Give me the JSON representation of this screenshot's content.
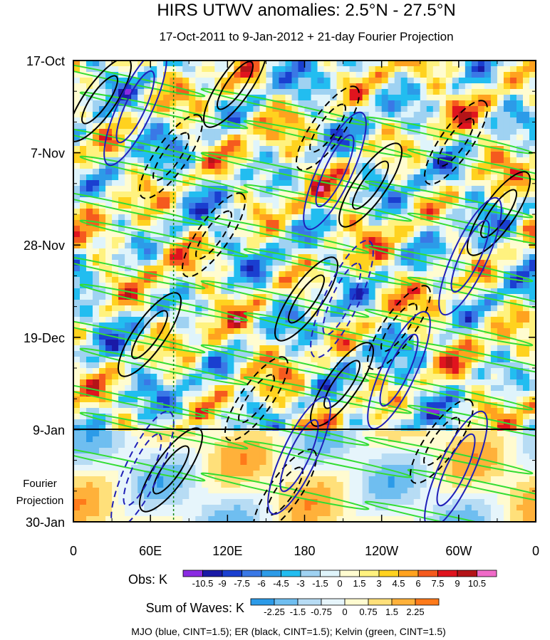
{
  "chart_data": {
    "type": "heatmap",
    "title": "HIRS UTWV anomalies: 2.5°N - 27.5°N",
    "subtitle": "17-Oct-2011 to 9-Jan-2012 + 21-day Fourier Projection",
    "x_ticks": [
      "0",
      "60E",
      "120E",
      "180",
      "120W",
      "60W",
      "0"
    ],
    "x_range_deg_east": [
      0,
      360
    ],
    "y_ticks": [
      "17-Oct",
      "7-Nov",
      "28-Nov",
      "19-Dec",
      "9-Jan",
      "30-Jan"
    ],
    "y_range_days": [
      0,
      105
    ],
    "observation_end_label": "9-Jan",
    "projection_label": [
      "Fourier",
      "Projection"
    ],
    "obs_label": "Obs: K",
    "obs_levels": [
      "-10.5",
      "-9",
      "-7.5",
      "-6",
      "-4.5",
      "-3",
      "-1.5",
      "0",
      "1.5",
      "3",
      "4.5",
      "6",
      "7.5",
      "9",
      "10.5"
    ],
    "obs_colors": [
      "#8a2be2",
      "#1a1aa6",
      "#1a3fd0",
      "#3a78e6",
      "#2c9be8",
      "#22bdf0",
      "#9fd2f2",
      "#dff4fb",
      "#fffcd0",
      "#fff27f",
      "#ffd21f",
      "#ffa21f",
      "#f55a1e",
      "#e0141e",
      "#b41418",
      "#f06ac8"
    ],
    "waves_label": "Sum of Waves: K",
    "waves_levels": [
      "-2.25",
      "-1.5",
      "-0.75",
      "0",
      "0.75",
      "1.5",
      "2.25"
    ],
    "waves_colors": [
      "#2c9be8",
      "#6fbef0",
      "#b7dcf4",
      "#e6f5fb",
      "#fffbd0",
      "#ffe07a",
      "#ffb13a",
      "#ff7a1a"
    ],
    "footer": "MJO (blue, CINT=1.5); ER (black, CINT=1.5); Kelvin (green, CINT=1.5)",
    "series": [
      {
        "name": "MJO",
        "color": "#1f1fb8",
        "cint": 1.5
      },
      {
        "name": "ER",
        "color": "#000000",
        "cint": 1.5
      },
      {
        "name": "Kelvin",
        "color": "#33dd33",
        "cint": 1.5
      }
    ],
    "reference_line_lon": 78
  }
}
